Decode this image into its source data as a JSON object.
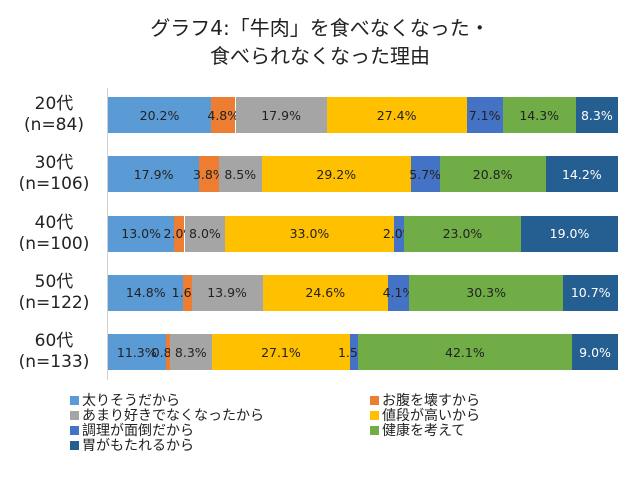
{
  "chart_data": {
    "type": "bar",
    "orientation": "horizontal-stacked-100",
    "title": [
      "グラフ4:「牛肉」を食べなくなった・",
      "食べられなくなった理由"
    ],
    "categories": [
      [
        "20代",
        "(n=84)"
      ],
      [
        "30代",
        "(n=106)"
      ],
      [
        "40代",
        "(n=100)"
      ],
      [
        "50代",
        "(n=122)"
      ],
      [
        "60代",
        "(n=133)"
      ]
    ],
    "series": [
      {
        "name": "太りそうだから",
        "color": "#5b9bd5",
        "text": "#222",
        "values": [
          20.2,
          17.9,
          13.0,
          14.8,
          11.3
        ]
      },
      {
        "name": "お腹を壊すから",
        "color": "#ed7d31",
        "text": "#222",
        "values": [
          4.8,
          3.8,
          2.0,
          1.6,
          0.8
        ]
      },
      {
        "name": "あまり好きでなくなったから",
        "color": "#a5a5a5",
        "text": "#222",
        "values": [
          17.9,
          8.5,
          8.0,
          13.9,
          8.3
        ]
      },
      {
        "name": "値段が高いから",
        "color": "#ffc000",
        "text": "#222",
        "values": [
          27.4,
          29.2,
          33.0,
          24.6,
          27.1
        ]
      },
      {
        "name": "調理が面倒だから",
        "color": "#4472c4",
        "text": "#222",
        "values": [
          7.1,
          5.7,
          2.0,
          4.1,
          1.5
        ]
      },
      {
        "name": "健康を考えて",
        "color": "#70ad47",
        "text": "#222",
        "values": [
          14.3,
          20.8,
          23.0,
          30.3,
          42.1
        ]
      },
      {
        "name": "胃がもたれるから",
        "color": "#255e91",
        "text": "#fff",
        "values": [
          8.3,
          14.2,
          19.0,
          10.7,
          9.0
        ]
      }
    ],
    "xlim": [
      0,
      100
    ],
    "legend_position": "bottom"
  }
}
